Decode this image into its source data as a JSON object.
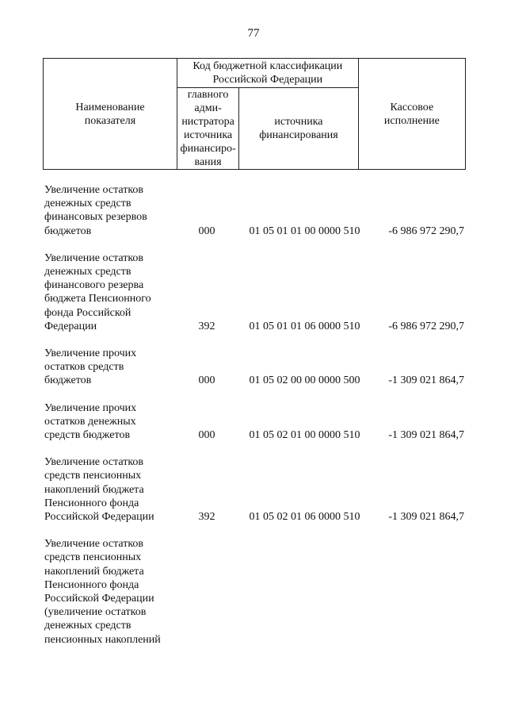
{
  "page_number": "77",
  "header": {
    "name": "Наименование показателя",
    "code_group": "Код бюджетной классификации Российской Федерации",
    "admin": "главного адми-нистратора источника финансиро-вания",
    "source": "источника финансирования",
    "amount": "Кассовое исполнение"
  },
  "rows": [
    {
      "name": "Увеличение остатков\nденежных средств\nфинансовых резервов\nбюджетов",
      "admin": "000",
      "code": "01 05 01 01 00 0000 510",
      "amount": "-6 986 972 290,7"
    },
    {
      "name": "Увеличение остатков\nденежных средств\nфинансового резерва\nбюджета Пенсионного\nфонда Российской\nФедерации",
      "admin": "392",
      "code": "01 05 01 01 06 0000 510",
      "amount": "-6 986 972 290,7"
    },
    {
      "name": "Увеличение прочих\nостатков средств\nбюджетов",
      "admin": "000",
      "code": "01 05 02 00 00 0000 500",
      "amount": "-1 309 021 864,7"
    },
    {
      "name": "Увеличение прочих\nостатков денежных\nсредств бюджетов",
      "admin": "000",
      "code": "01 05 02 01 00 0000 510",
      "amount": "-1 309 021 864,7"
    },
    {
      "name": "Увеличение остатков\nсредств пенсионных\nнакоплений бюджета\nПенсионного фонда\nРоссийской Федерации",
      "admin": "392",
      "code": "01 05 02 01 06 0000 510",
      "amount": "-1 309 021 864,7"
    },
    {
      "name": "Увеличение остатков\nсредств пенсионных\nнакоплений бюджета\nПенсионного фонда\nРоссийской Федерации\n(увеличение остатков\nденежных средств\nпенсионных накоплений",
      "admin": "",
      "code": "",
      "amount": ""
    }
  ]
}
